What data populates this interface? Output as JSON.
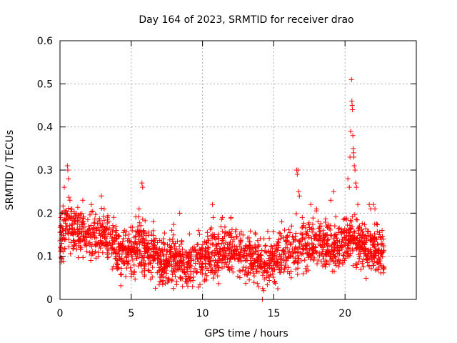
{
  "chart_data": {
    "type": "scatter",
    "title": "Day 164 of 2023, SRMTID for receiver drao",
    "xlabel": "GPS time / hours",
    "ylabel": "SRMTID / TECUs",
    "xlim": [
      0,
      25
    ],
    "ylim": [
      0,
      0.6
    ],
    "xticks": [
      0,
      5,
      10,
      15,
      20
    ],
    "yticks": [
      0,
      0.1,
      0.2,
      0.3,
      0.4,
      0.5,
      0.6
    ],
    "xtick_labels": [
      "0",
      "5",
      "10",
      "15",
      "20"
    ],
    "ytick_labels": [
      "0",
      "0.1",
      "0.2",
      "0.3",
      "0.4",
      "0.5",
      "0.6"
    ],
    "grid": true,
    "marker": "+",
    "series": [
      {
        "name": "SRMTID",
        "color": "#ff0000",
        "baseline": [
          [
            0.0,
            0.14
          ],
          [
            0.5,
            0.17
          ],
          [
            1.0,
            0.16
          ],
          [
            1.5,
            0.16
          ],
          [
            2.0,
            0.14
          ],
          [
            2.5,
            0.15
          ],
          [
            3.0,
            0.15
          ],
          [
            3.5,
            0.13
          ],
          [
            4.0,
            0.11
          ],
          [
            4.5,
            0.1
          ],
          [
            5.0,
            0.11
          ],
          [
            5.5,
            0.13
          ],
          [
            6.0,
            0.12
          ],
          [
            6.5,
            0.1
          ],
          [
            7.0,
            0.09
          ],
          [
            7.5,
            0.09
          ],
          [
            8.0,
            0.1
          ],
          [
            8.5,
            0.09
          ],
          [
            9.0,
            0.08
          ],
          [
            9.5,
            0.09
          ],
          [
            10.0,
            0.09
          ],
          [
            10.5,
            0.1
          ],
          [
            11.0,
            0.1
          ],
          [
            11.5,
            0.11
          ],
          [
            12.0,
            0.12
          ],
          [
            12.5,
            0.11
          ],
          [
            13.0,
            0.1
          ],
          [
            13.5,
            0.1
          ],
          [
            14.0,
            0.09
          ],
          [
            14.5,
            0.08
          ],
          [
            15.0,
            0.09
          ],
          [
            15.5,
            0.1
          ],
          [
            16.0,
            0.11
          ],
          [
            16.5,
            0.12
          ],
          [
            17.0,
            0.13
          ],
          [
            17.5,
            0.13
          ],
          [
            18.0,
            0.14
          ],
          [
            18.5,
            0.13
          ],
          [
            19.0,
            0.13
          ],
          [
            19.5,
            0.12
          ],
          [
            20.0,
            0.14
          ],
          [
            20.5,
            0.15
          ],
          [
            21.0,
            0.13
          ],
          [
            21.5,
            0.12
          ],
          [
            22.0,
            0.12
          ],
          [
            22.5,
            0.1
          ],
          [
            22.75,
            0.1
          ]
        ],
        "spikes": [
          [
            0.05,
            0.19
          ],
          [
            0.1,
            0.2
          ],
          [
            0.3,
            0.26
          ],
          [
            0.52,
            0.31
          ],
          [
            0.55,
            0.3
          ],
          [
            0.6,
            0.28
          ],
          [
            0.7,
            0.23
          ],
          [
            1.6,
            0.23
          ],
          [
            2.2,
            0.22
          ],
          [
            2.9,
            0.24
          ],
          [
            3.1,
            0.21
          ],
          [
            5.55,
            0.21
          ],
          [
            5.75,
            0.27
          ],
          [
            5.8,
            0.26
          ],
          [
            8.4,
            0.2
          ],
          [
            8.6,
            0.03
          ],
          [
            10.7,
            0.22
          ],
          [
            10.75,
            0.19
          ],
          [
            11.4,
            0.19
          ],
          [
            12.0,
            0.19
          ],
          [
            14.2,
            0.0
          ],
          [
            16.6,
            0.3
          ],
          [
            16.65,
            0.29
          ],
          [
            16.7,
            0.3
          ],
          [
            16.75,
            0.25
          ],
          [
            16.8,
            0.24
          ],
          [
            17.0,
            0.19
          ],
          [
            17.6,
            0.22
          ],
          [
            18.0,
            0.21
          ],
          [
            19.0,
            0.23
          ],
          [
            19.2,
            0.25
          ],
          [
            20.2,
            0.28
          ],
          [
            20.3,
            0.26
          ],
          [
            20.35,
            0.33
          ],
          [
            20.4,
            0.39
          ],
          [
            20.45,
            0.51
          ],
          [
            20.48,
            0.46
          ],
          [
            20.5,
            0.45
          ],
          [
            20.52,
            0.44
          ],
          [
            20.55,
            0.38
          ],
          [
            20.58,
            0.35
          ],
          [
            20.6,
            0.34
          ],
          [
            20.62,
            0.33
          ],
          [
            20.65,
            0.31
          ],
          [
            20.7,
            0.3
          ],
          [
            20.75,
            0.27
          ],
          [
            20.8,
            0.26
          ],
          [
            20.9,
            0.22
          ],
          [
            21.0,
            0.17
          ],
          [
            21.7,
            0.22
          ],
          [
            21.8,
            0.21
          ],
          [
            22.0,
            0.22
          ],
          [
            22.1,
            0.21
          ],
          [
            22.6,
            0.16
          ],
          [
            22.7,
            0.14
          ]
        ]
      }
    ]
  }
}
